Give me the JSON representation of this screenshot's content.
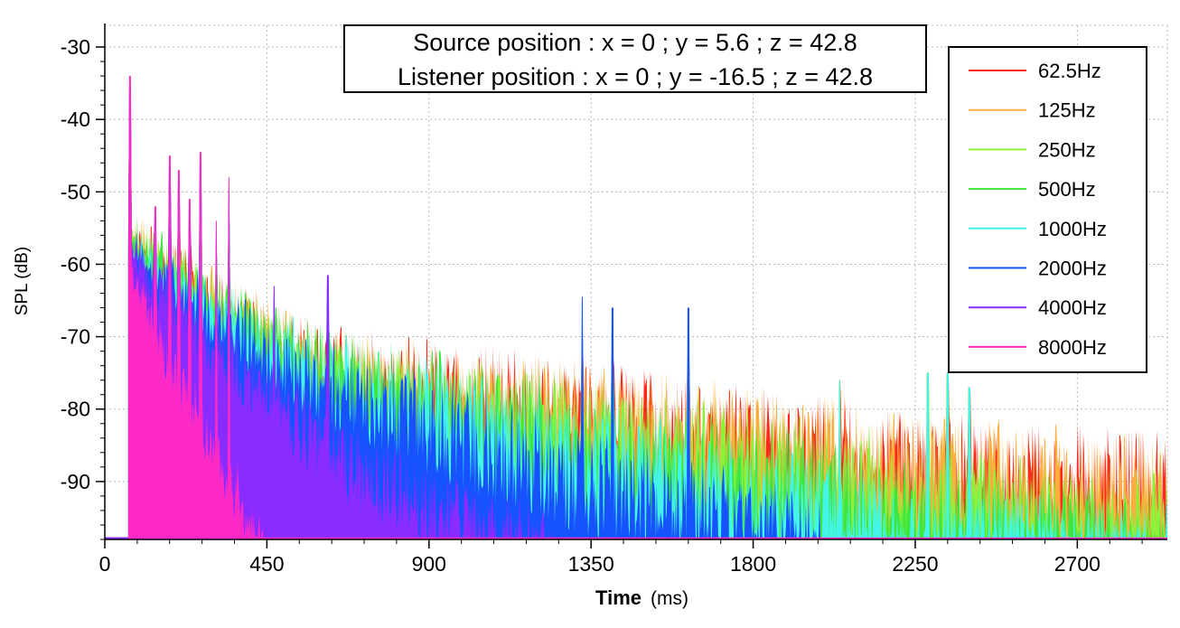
{
  "chart_data": {
    "type": "area",
    "title": "",
    "annotation": [
      "Source position : x = 0 ; y = 5.6 ; z = 42.8",
      "Listener position : x = 0 ; y = -16.5 ; z = 42.8"
    ],
    "xlabel": "Time",
    "xunit": "(ms)",
    "ylabel": "SPL (dB)",
    "xlim": [
      0,
      2950
    ],
    "ylim": [
      -98,
      -27
    ],
    "xticks": [
      0,
      450,
      900,
      1350,
      1800,
      2250,
      2700
    ],
    "yticks": [
      -30,
      -40,
      -50,
      -60,
      -70,
      -80,
      -90
    ],
    "grid": true,
    "legend_position": "top-right",
    "series": [
      {
        "name": "62.5Hz",
        "color": "#ff2a1a",
        "envelope": [
          [
            65,
            -54
          ],
          [
            300,
            -62
          ],
          [
            600,
            -70
          ],
          [
            900,
            -72
          ],
          [
            1350,
            -75
          ],
          [
            1800,
            -78
          ],
          [
            2250,
            -82
          ],
          [
            2700,
            -84
          ],
          [
            2950,
            -85
          ]
        ],
        "end_ms": 2950
      },
      {
        "name": "125Hz",
        "color": "#ffae3d",
        "envelope": [
          [
            65,
            -54
          ],
          [
            300,
            -62
          ],
          [
            600,
            -70
          ],
          [
            900,
            -72
          ],
          [
            1350,
            -75
          ],
          [
            1800,
            -78
          ],
          [
            2250,
            -82
          ],
          [
            2700,
            -84
          ],
          [
            2950,
            -85
          ]
        ],
        "end_ms": 2950
      },
      {
        "name": "250Hz",
        "color": "#8cf23a",
        "envelope": [
          [
            65,
            -54
          ],
          [
            300,
            -62
          ],
          [
            600,
            -70
          ],
          [
            900,
            -73
          ],
          [
            1350,
            -77
          ],
          [
            1800,
            -81
          ],
          [
            2250,
            -85
          ],
          [
            2700,
            -89
          ],
          [
            2950,
            -90
          ]
        ],
        "end_ms": 2950
      },
      {
        "name": "500Hz",
        "color": "#3ee63e",
        "envelope": [
          [
            65,
            -54
          ],
          [
            300,
            -62
          ],
          [
            600,
            -70
          ],
          [
            900,
            -73
          ],
          [
            1350,
            -78
          ],
          [
            1800,
            -83
          ],
          [
            2250,
            -88
          ],
          [
            2700,
            -92
          ],
          [
            2950,
            -93
          ]
        ],
        "end_ms": 2950
      },
      {
        "name": "1000Hz",
        "color": "#42f5e6",
        "envelope": [
          [
            65,
            -55
          ],
          [
            300,
            -63
          ],
          [
            600,
            -71
          ],
          [
            900,
            -74
          ],
          [
            1350,
            -80
          ],
          [
            1800,
            -86
          ],
          [
            2250,
            -91
          ],
          [
            2700,
            -94
          ],
          [
            2950,
            -95
          ]
        ],
        "end_ms": 2950
      },
      {
        "name": "2000Hz",
        "color": "#1752ff",
        "envelope": [
          [
            65,
            -55
          ],
          [
            300,
            -64
          ],
          [
            600,
            -72
          ],
          [
            900,
            -76
          ],
          [
            1350,
            -84
          ],
          [
            1800,
            -90
          ],
          [
            2000,
            -94
          ]
        ],
        "end_ms": 2000
      },
      {
        "name": "4000Hz",
        "color": "#8a2bff",
        "envelope": [
          [
            65,
            -56
          ],
          [
            300,
            -68
          ],
          [
            600,
            -80
          ],
          [
            900,
            -89
          ],
          [
            1100,
            -93
          ],
          [
            1250,
            -95
          ]
        ],
        "end_ms": 1250
      },
      {
        "name": "8000Hz",
        "color": "#ff2ac6",
        "envelope": [
          [
            65,
            -56
          ],
          [
            150,
            -68
          ],
          [
            300,
            -82
          ],
          [
            440,
            -95
          ]
        ],
        "end_ms": 440
      }
    ],
    "peaks": [
      {
        "t": 70,
        "spl": -38
      },
      {
        "t": 140,
        "spl": -56
      },
      {
        "t": 180,
        "spl": -49
      },
      {
        "t": 205,
        "spl": -51
      },
      {
        "t": 235,
        "spl": -55
      },
      {
        "t": 265,
        "spl": -48.5
      },
      {
        "t": 310,
        "spl": -58
      },
      {
        "t": 345,
        "spl": -52
      },
      {
        "t": 470,
        "spl": -71.5
      },
      {
        "t": 620,
        "spl": -70
      },
      {
        "t": 1325,
        "spl": -71.5
      },
      {
        "t": 1410,
        "spl": -73
      },
      {
        "t": 1620,
        "spl": -73
      },
      {
        "t": 2040,
        "spl": -76
      },
      {
        "t": 2285,
        "spl": -75
      },
      {
        "t": 2340,
        "spl": -75
      },
      {
        "t": 2400,
        "spl": -77
      }
    ]
  }
}
